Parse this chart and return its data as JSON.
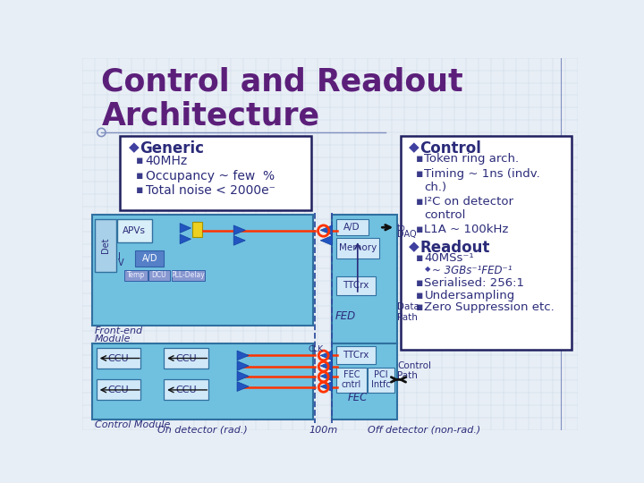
{
  "title_line1": "Control and Readout",
  "title_line2": "Architecture",
  "title_color": "#5B1F7A",
  "slide_bg": "#E8EEF5",
  "grid_color": "#C8D8E8",
  "generic_header": "Generic",
  "generic_bullets": [
    "40MHz",
    "Occupancy ~ few  %",
    "Total noise < 2000e⁻"
  ],
  "control_header": "Control",
  "control_bullets": [
    "Token ring arch.",
    "Timing ~ 1ns (indv.\nch.)",
    "I²C on detector\ncontrol",
    "L1A ~ 100kHz"
  ],
  "readout_header": "Readout",
  "readout_bullets": [
    "40MSs⁻¹",
    "~ 3GBs⁻¹FED⁻¹",
    "Serialised: 256:1",
    "Undersampling",
    "Zero Suppression etc."
  ],
  "diamond_color": "#4040A0",
  "bullet_color": "#3A3A8A",
  "text_color": "#2B2B7A",
  "box_bg": "#FFFFFF",
  "box_border": "#202060",
  "fe_module_bg": "#70C0E0",
  "fe_module_border": "#3070A0",
  "off_detector_bg": "#70C0E0",
  "dashed_color": "#3050A0",
  "optical_color": "#FF3300",
  "bottom_label_left": "On detector (rad.)",
  "bottom_label_mid": "100m",
  "bottom_label_right": "Off detector (non-rad.)",
  "label_frontend_1": "Front-end",
  "label_frontend_2": "Module",
  "label_control_mod": "Control Module",
  "label_fed": "FED",
  "label_fec": "FEC",
  "label_data_path": "Data\nPath",
  "label_control_path": "Control\nPath",
  "label_to_daq": "DAQ",
  "label_clk": "CLK"
}
